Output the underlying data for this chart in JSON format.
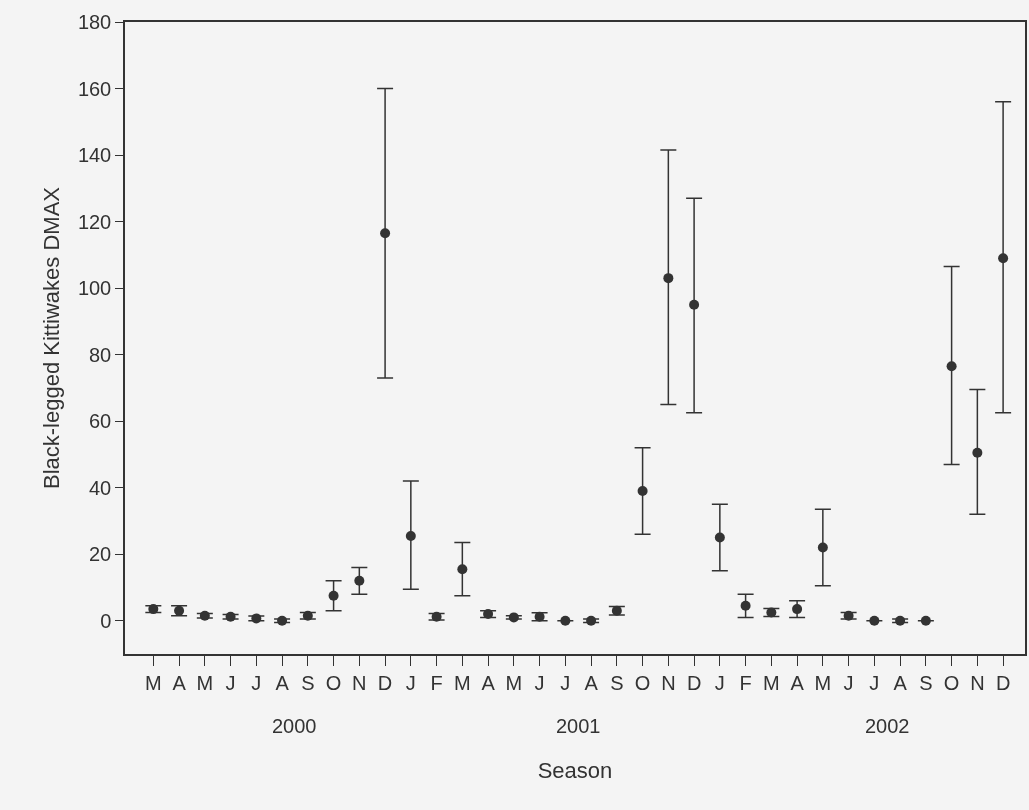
{
  "chart_data": {
    "type": "scatter",
    "xlabel": "Season",
    "ylabel": "Black-legged Kittiwakes DMAX",
    "categories": [
      "M",
      "A",
      "M",
      "J",
      "J",
      "A",
      "S",
      "O",
      "N",
      "D",
      "J",
      "F",
      "M",
      "A",
      "M",
      "J",
      "J",
      "A",
      "S",
      "O",
      "N",
      "D",
      "J",
      "F",
      "M",
      "A",
      "M",
      "J",
      "J",
      "A",
      "S",
      "O",
      "N",
      "D"
    ],
    "values": [
      3.5,
      3,
      1.5,
      1.2,
      0.7,
      0,
      1.5,
      7.5,
      12,
      116.5,
      25.5,
      1.2,
      15.5,
      2,
      1,
      1.2,
      0,
      0,
      3,
      39,
      103,
      95,
      25,
      4.5,
      2.5,
      3.5,
      22,
      1.5,
      0,
      0,
      0,
      76.5,
      50.5,
      109
    ],
    "errors": [
      [
        2.5,
        4.5
      ],
      [
        1.5,
        4.5
      ],
      [
        0.8,
        2.2
      ],
      [
        0.5,
        1.9
      ],
      [
        0,
        1.4
      ],
      [
        -0.5,
        0.5
      ],
      [
        0.5,
        2.5
      ],
      [
        3,
        12
      ],
      [
        8,
        16
      ],
      [
        73,
        160
      ],
      [
        9.5,
        42
      ],
      [
        0.2,
        2.2
      ],
      [
        7.5,
        23.5
      ],
      [
        1,
        3
      ],
      [
        0.5,
        1.5
      ],
      [
        0,
        2.4
      ],
      null,
      [
        -0.5,
        0.5
      ],
      [
        1.7,
        4.3
      ],
      [
        26,
        52
      ],
      [
        65,
        141.5
      ],
      [
        62.5,
        127
      ],
      [
        15,
        35
      ],
      [
        1,
        8
      ],
      [
        1.3,
        3.7
      ],
      [
        1,
        6
      ],
      [
        10.5,
        33.5
      ],
      [
        0.5,
        2.5
      ],
      null,
      [
        -0.5,
        0.5
      ],
      null,
      [
        47,
        106.5
      ],
      [
        32,
        69.5
      ],
      [
        62.5,
        156
      ]
    ],
    "color": "#333333",
    "marker": "circle",
    "ylim": [
      -10,
      180
    ],
    "yticks": [
      0,
      20,
      40,
      60,
      80,
      100,
      120,
      140,
      160,
      180
    ],
    "annotations": [
      "2000",
      "2001",
      "2002"
    ]
  }
}
